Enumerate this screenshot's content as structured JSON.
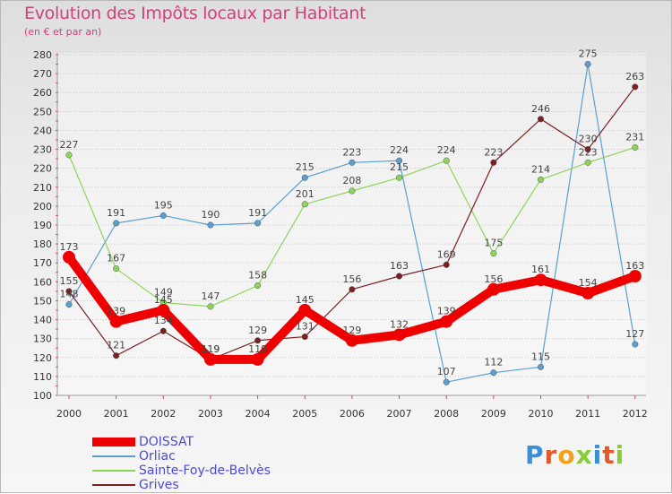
{
  "title": "Evolution des Impôts locaux par Habitant",
  "subtitle": "(en € et par an)",
  "logo_text": "Proxiti",
  "colors": {
    "title": "#d2407a",
    "legend_text": "#4a4ad8"
  },
  "chart_data": {
    "type": "line",
    "title": "Evolution des Impôts locaux par Habitant",
    "subtitle": "(en € et par an)",
    "xlabel": "",
    "ylabel": "",
    "ylim": [
      100,
      280
    ],
    "ytick_step": 10,
    "grid": "horizontal dotted",
    "legend_position": "bottom-left",
    "categories": [
      "2000",
      "2001",
      "2002",
      "2003",
      "2004",
      "2005",
      "2006",
      "2007",
      "2008",
      "2009",
      "2010",
      "2011",
      "2012"
    ],
    "y_ticks": [
      "100",
      "110",
      "120",
      "130",
      "140",
      "150",
      "160",
      "170",
      "180",
      "190",
      "200",
      "210",
      "220",
      "230",
      "240",
      "250",
      "260",
      "270",
      "280"
    ],
    "series": [
      {
        "name": "DOISSAT",
        "color": "#ee0000",
        "values": [
          173,
          139,
          145,
          119,
          119,
          145,
          129,
          132,
          139,
          156,
          161,
          154,
          163
        ]
      },
      {
        "name": "Orliac",
        "color": "#5a9fd0",
        "values": [
          148,
          191,
          195,
          190,
          191,
          215,
          223,
          224,
          107,
          112,
          115,
          275,
          127
        ]
      },
      {
        "name": "Sainte-Foy-de-Belvès",
        "color": "#8fd45a",
        "values": [
          227,
          167,
          149,
          147,
          158,
          201,
          208,
          215,
          224,
          175,
          214,
          223,
          231
        ]
      },
      {
        "name": "Grives",
        "color": "#7a2020",
        "values": [
          155,
          121,
          134,
          119,
          129,
          131,
          156,
          163,
          169,
          223,
          246,
          230,
          263
        ]
      }
    ]
  }
}
